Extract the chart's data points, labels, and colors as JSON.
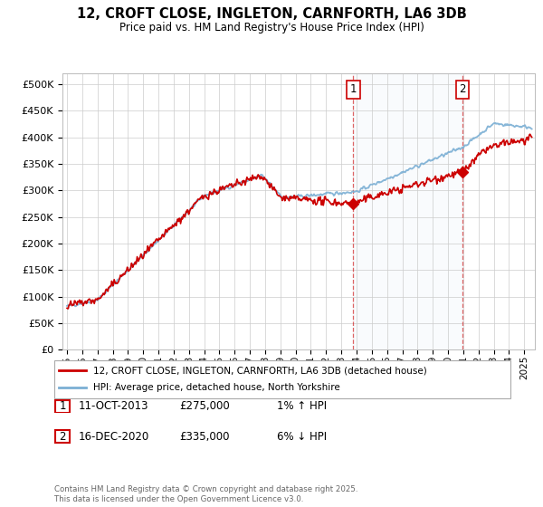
{
  "title_line1": "12, CROFT CLOSE, INGLETON, CARNFORTH, LA6 3DB",
  "title_line2": "Price paid vs. HM Land Registry's House Price Index (HPI)",
  "ylim": [
    0,
    520000
  ],
  "yticks": [
    0,
    50000,
    100000,
    150000,
    200000,
    250000,
    300000,
    350000,
    400000,
    450000,
    500000
  ],
  "ytick_labels": [
    "£0",
    "£50K",
    "£100K",
    "£150K",
    "£200K",
    "£250K",
    "£300K",
    "£350K",
    "£400K",
    "£450K",
    "£500K"
  ],
  "xlim_start": 1994.7,
  "xlim_end": 2025.7,
  "sale1_date": 2013.78,
  "sale1_price": 275000,
  "sale1_label": "1",
  "sale2_date": 2020.96,
  "sale2_price": 335000,
  "sale2_label": "2",
  "sale1_col1": "11-OCT-2013",
  "sale1_col2": "£275,000",
  "sale1_col3": "1% ↑ HPI",
  "sale2_col1": "16-DEC-2020",
  "sale2_col2": "£335,000",
  "sale2_col3": "6% ↓ HPI",
  "hpi_color": "#7bafd4",
  "price_color": "#cc0000",
  "vline_color": "#cc0000",
  "background_color": "#ffffff",
  "grid_color": "#cccccc",
  "legend_label1": "12, CROFT CLOSE, INGLETON, CARNFORTH, LA6 3DB (detached house)",
  "legend_label2": "HPI: Average price, detached house, North Yorkshire",
  "footer": "Contains HM Land Registry data © Crown copyright and database right 2025.\nThis data is licensed under the Open Government Licence v3.0.",
  "highlight_color": "#dce9f5"
}
